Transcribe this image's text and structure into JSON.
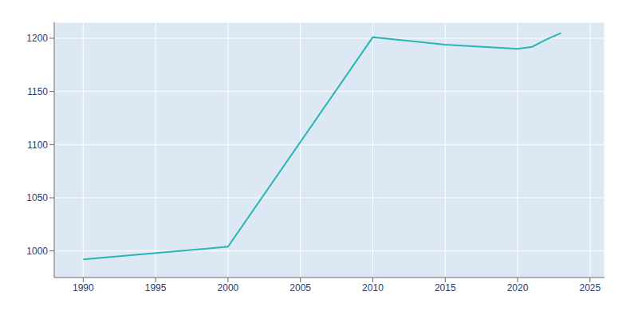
{
  "chart_data": {
    "type": "line",
    "x": [
      1990,
      2000,
      2010,
      2015,
      2020,
      2021,
      2022,
      2023
    ],
    "values": [
      992,
      1004,
      1201,
      1194,
      1190,
      1192,
      1199,
      1205
    ],
    "color": "#2ab5b5",
    "xlim": [
      1988,
      2026
    ],
    "ylim": [
      975,
      1215
    ],
    "xticks": [
      1990,
      1995,
      2000,
      2005,
      2010,
      2015,
      2020,
      2025
    ],
    "yticks": [
      1000,
      1050,
      1100,
      1150,
      1200
    ],
    "grid": true
  }
}
